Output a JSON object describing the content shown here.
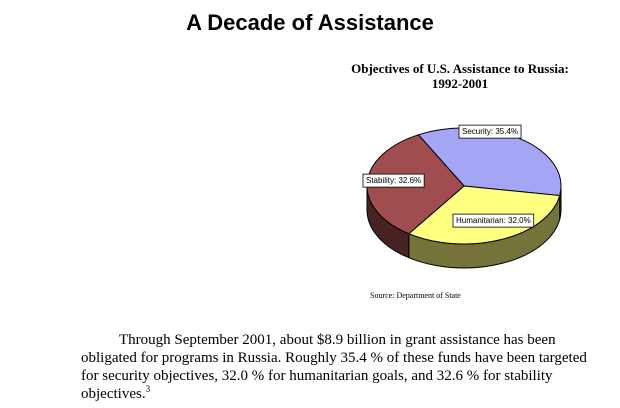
{
  "page": {
    "title": "A Decade of Assistance"
  },
  "chart_data": {
    "type": "pie",
    "title_line1": "Objectives of U.S. Assistance to Russia:",
    "title_line2": "1992-2001",
    "slices": [
      {
        "name": "Security",
        "value": 35.4,
        "label": "Security: 35.4%",
        "color": "#a5a5f5"
      },
      {
        "name": "Humanitarian",
        "value": 32.0,
        "label": "Humanitarian: 32.0%",
        "color": "#ffff80"
      },
      {
        "name": "Stability",
        "value": 32.6,
        "label": "Stability: 32.6%",
        "color": "#a04d50"
      }
    ],
    "source": "Source: Department of State"
  },
  "paragraph": {
    "line1": "Through September 2001, about $8.9 billion in grant assistance has been",
    "line2": "obligated for programs in Russia.  Roughly 35.4 % of these funds have been targeted",
    "line3": "for security objectives, 32.0 % for humanitarian goals, and 32.6 % for stability",
    "line4": "objectives.",
    "footnote": "3"
  }
}
